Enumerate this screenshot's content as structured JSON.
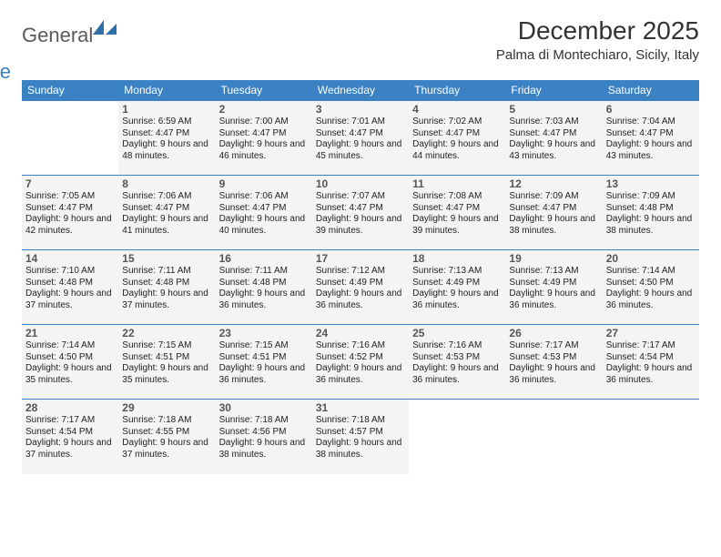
{
  "brand": {
    "part1": "General",
    "part2": "Blue"
  },
  "title": "December 2025",
  "location": "Palma di Montechiaro, Sicily, Italy",
  "colors": {
    "header_bg": "#3b82c4",
    "cell_bg": "#f4f4f4",
    "border": "#3b82c4",
    "text": "#222222",
    "daynum": "#555555"
  },
  "weekdays": [
    "Sunday",
    "Monday",
    "Tuesday",
    "Wednesday",
    "Thursday",
    "Friday",
    "Saturday"
  ],
  "first_weekday_offset": 1,
  "days": [
    {
      "n": "1",
      "sr": "6:59 AM",
      "ss": "4:47 PM",
      "dl": "9 hours and 48 minutes."
    },
    {
      "n": "2",
      "sr": "7:00 AM",
      "ss": "4:47 PM",
      "dl": "9 hours and 46 minutes."
    },
    {
      "n": "3",
      "sr": "7:01 AM",
      "ss": "4:47 PM",
      "dl": "9 hours and 45 minutes."
    },
    {
      "n": "4",
      "sr": "7:02 AM",
      "ss": "4:47 PM",
      "dl": "9 hours and 44 minutes."
    },
    {
      "n": "5",
      "sr": "7:03 AM",
      "ss": "4:47 PM",
      "dl": "9 hours and 43 minutes."
    },
    {
      "n": "6",
      "sr": "7:04 AM",
      "ss": "4:47 PM",
      "dl": "9 hours and 43 minutes."
    },
    {
      "n": "7",
      "sr": "7:05 AM",
      "ss": "4:47 PM",
      "dl": "9 hours and 42 minutes."
    },
    {
      "n": "8",
      "sr": "7:06 AM",
      "ss": "4:47 PM",
      "dl": "9 hours and 41 minutes."
    },
    {
      "n": "9",
      "sr": "7:06 AM",
      "ss": "4:47 PM",
      "dl": "9 hours and 40 minutes."
    },
    {
      "n": "10",
      "sr": "7:07 AM",
      "ss": "4:47 PM",
      "dl": "9 hours and 39 minutes."
    },
    {
      "n": "11",
      "sr": "7:08 AM",
      "ss": "4:47 PM",
      "dl": "9 hours and 39 minutes."
    },
    {
      "n": "12",
      "sr": "7:09 AM",
      "ss": "4:47 PM",
      "dl": "9 hours and 38 minutes."
    },
    {
      "n": "13",
      "sr": "7:09 AM",
      "ss": "4:48 PM",
      "dl": "9 hours and 38 minutes."
    },
    {
      "n": "14",
      "sr": "7:10 AM",
      "ss": "4:48 PM",
      "dl": "9 hours and 37 minutes."
    },
    {
      "n": "15",
      "sr": "7:11 AM",
      "ss": "4:48 PM",
      "dl": "9 hours and 37 minutes."
    },
    {
      "n": "16",
      "sr": "7:11 AM",
      "ss": "4:48 PM",
      "dl": "9 hours and 36 minutes."
    },
    {
      "n": "17",
      "sr": "7:12 AM",
      "ss": "4:49 PM",
      "dl": "9 hours and 36 minutes."
    },
    {
      "n": "18",
      "sr": "7:13 AM",
      "ss": "4:49 PM",
      "dl": "9 hours and 36 minutes."
    },
    {
      "n": "19",
      "sr": "7:13 AM",
      "ss": "4:49 PM",
      "dl": "9 hours and 36 minutes."
    },
    {
      "n": "20",
      "sr": "7:14 AM",
      "ss": "4:50 PM",
      "dl": "9 hours and 36 minutes."
    },
    {
      "n": "21",
      "sr": "7:14 AM",
      "ss": "4:50 PM",
      "dl": "9 hours and 35 minutes."
    },
    {
      "n": "22",
      "sr": "7:15 AM",
      "ss": "4:51 PM",
      "dl": "9 hours and 35 minutes."
    },
    {
      "n": "23",
      "sr": "7:15 AM",
      "ss": "4:51 PM",
      "dl": "9 hours and 36 minutes."
    },
    {
      "n": "24",
      "sr": "7:16 AM",
      "ss": "4:52 PM",
      "dl": "9 hours and 36 minutes."
    },
    {
      "n": "25",
      "sr": "7:16 AM",
      "ss": "4:53 PM",
      "dl": "9 hours and 36 minutes."
    },
    {
      "n": "26",
      "sr": "7:17 AM",
      "ss": "4:53 PM",
      "dl": "9 hours and 36 minutes."
    },
    {
      "n": "27",
      "sr": "7:17 AM",
      "ss": "4:54 PM",
      "dl": "9 hours and 36 minutes."
    },
    {
      "n": "28",
      "sr": "7:17 AM",
      "ss": "4:54 PM",
      "dl": "9 hours and 37 minutes."
    },
    {
      "n": "29",
      "sr": "7:18 AM",
      "ss": "4:55 PM",
      "dl": "9 hours and 37 minutes."
    },
    {
      "n": "30",
      "sr": "7:18 AM",
      "ss": "4:56 PM",
      "dl": "9 hours and 38 minutes."
    },
    {
      "n": "31",
      "sr": "7:18 AM",
      "ss": "4:57 PM",
      "dl": "9 hours and 38 minutes."
    }
  ],
  "labels": {
    "sunrise": "Sunrise:",
    "sunset": "Sunset:",
    "daylight": "Daylight:"
  }
}
